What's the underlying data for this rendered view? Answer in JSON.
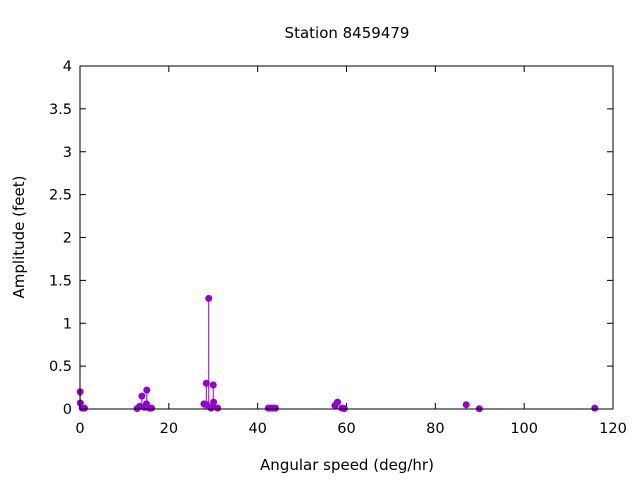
{
  "chart_data": {
    "type": "impulse-scatter",
    "title": "Station 8459479",
    "xlabel": "Angular speed (deg/hr)",
    "ylabel": "Amplitude (feet)",
    "xlim": [
      0,
      120
    ],
    "ylim": [
      0,
      4
    ],
    "xticks": [
      "0",
      "20",
      "40",
      "60",
      "80",
      "100",
      "120"
    ],
    "yticks": [
      "0",
      "0.5",
      "1",
      "1.5",
      "2",
      "2.5",
      "3",
      "3.5",
      "4"
    ],
    "color": "#9400d3",
    "grid": false,
    "points": [
      {
        "x": 0.04,
        "y": 0.2
      },
      {
        "x": 0.08,
        "y": 0.07
      },
      {
        "x": 0.5,
        "y": 0.01
      },
      {
        "x": 1.0,
        "y": 0.01
      },
      {
        "x": 12.85,
        "y": 0.005
      },
      {
        "x": 13.4,
        "y": 0.03
      },
      {
        "x": 13.94,
        "y": 0.15
      },
      {
        "x": 14.5,
        "y": 0.02
      },
      {
        "x": 14.96,
        "y": 0.06
      },
      {
        "x": 15.04,
        "y": 0.22
      },
      {
        "x": 15.6,
        "y": 0.01
      },
      {
        "x": 16.1,
        "y": 0.01
      },
      {
        "x": 27.9,
        "y": 0.06
      },
      {
        "x": 28.44,
        "y": 0.3
      },
      {
        "x": 28.5,
        "y": 0.05
      },
      {
        "x": 28.98,
        "y": 1.29
      },
      {
        "x": 29.5,
        "y": 0.01
      },
      {
        "x": 29.96,
        "y": 0.03
      },
      {
        "x": 30.0,
        "y": 0.28
      },
      {
        "x": 30.08,
        "y": 0.08
      },
      {
        "x": 31.0,
        "y": 0.01
      },
      {
        "x": 42.4,
        "y": 0.01
      },
      {
        "x": 43.0,
        "y": 0.01
      },
      {
        "x": 43.5,
        "y": 0.01
      },
      {
        "x": 44.0,
        "y": 0.01
      },
      {
        "x": 57.4,
        "y": 0.04
      },
      {
        "x": 57.97,
        "y": 0.08
      },
      {
        "x": 58.98,
        "y": 0.01
      },
      {
        "x": 59.5,
        "y": 0.005
      },
      {
        "x": 86.95,
        "y": 0.05
      },
      {
        "x": 89.9,
        "y": 0.003
      },
      {
        "x": 115.9,
        "y": 0.01
      }
    ]
  }
}
